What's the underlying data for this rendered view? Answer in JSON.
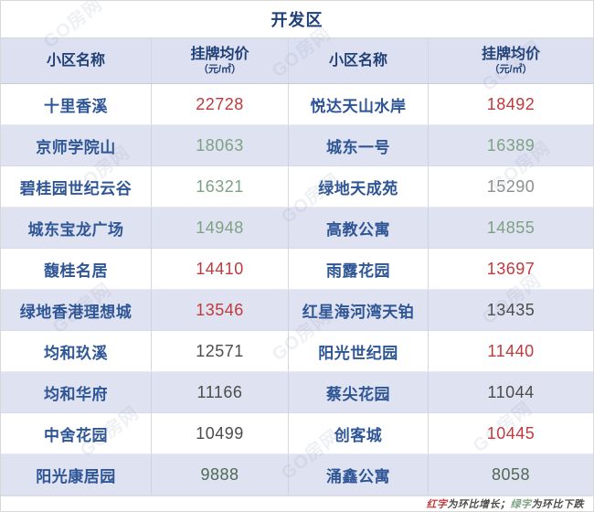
{
  "title": "开发区",
  "header": {
    "name_label": "小区名称",
    "price_label": "挂牌均价",
    "price_unit": "（元/㎡）"
  },
  "colors": {
    "red": "#c0393c",
    "green": "#7ea184",
    "dark_green": "#4f6a55",
    "gray": "#8b8f8d",
    "dark": "#4c4c4a",
    "name_blue": "#2e5596",
    "title_blue": "#1f3f77",
    "header_bg": "#dce0f0",
    "alt_row_bg": "#dfe2f1"
  },
  "watermark": {
    "text": "GO房网"
  },
  "footer": {
    "segments": [
      {
        "text": "红字",
        "color": "red"
      },
      {
        "text": "为环比增长；",
        "color": "dark"
      },
      {
        "text": "绿字",
        "color": "green"
      },
      {
        "text": "为环比下跌",
        "color": "dark"
      }
    ]
  },
  "chart_data": {
    "type": "table",
    "title": "开发区",
    "columns": [
      "小区名称",
      "挂牌均价（元/㎡）",
      "小区名称",
      "挂牌均价（元/㎡）"
    ],
    "color_legend": {
      "red": "环比增长",
      "green": "环比下跌"
    },
    "rows": [
      {
        "left": {
          "name": "十里香溪",
          "price": "22728",
          "color": "red"
        },
        "right": {
          "name": "悦达天山水岸",
          "price": "18492",
          "color": "red"
        }
      },
      {
        "left": {
          "name": "京师学院山",
          "price": "18063",
          "color": "green"
        },
        "right": {
          "name": "城东一号",
          "price": "16389",
          "color": "green"
        }
      },
      {
        "left": {
          "name": "碧桂园世纪云谷",
          "price": "16321",
          "color": "green"
        },
        "right": {
          "name": "绿地天成苑",
          "price": "15290",
          "color": "gray"
        }
      },
      {
        "left": {
          "name": "城东宝龙广场",
          "price": "14948",
          "color": "green"
        },
        "right": {
          "name": "高教公寓",
          "price": "14855",
          "color": "green"
        }
      },
      {
        "left": {
          "name": "馥桂名居",
          "price": "14410",
          "color": "red"
        },
        "right": {
          "name": "雨露花园",
          "price": "13697",
          "color": "red"
        }
      },
      {
        "left": {
          "name": "绿地香港理想城",
          "price": "13546",
          "color": "red"
        },
        "right": {
          "name": "红星海河湾天铂",
          "price": "13435",
          "color": "dark"
        }
      },
      {
        "left": {
          "name": "均和玖溪",
          "price": "12571",
          "color": "dark"
        },
        "right": {
          "name": "阳光世纪园",
          "price": "11440",
          "color": "red"
        }
      },
      {
        "left": {
          "name": "均和华府",
          "price": "11166",
          "color": "dark"
        },
        "right": {
          "name": "蔡尖花园",
          "price": "11044",
          "color": "dark"
        }
      },
      {
        "left": {
          "name": "中舍花园",
          "price": "10499",
          "color": "dark"
        },
        "right": {
          "name": "创客城",
          "price": "10445",
          "color": "red"
        }
      },
      {
        "left": {
          "name": "阳光康居园",
          "price": "9888",
          "color": "dark_green"
        },
        "right": {
          "name": "涌鑫公寓",
          "price": "8058",
          "color": "dark_green"
        }
      }
    ]
  }
}
